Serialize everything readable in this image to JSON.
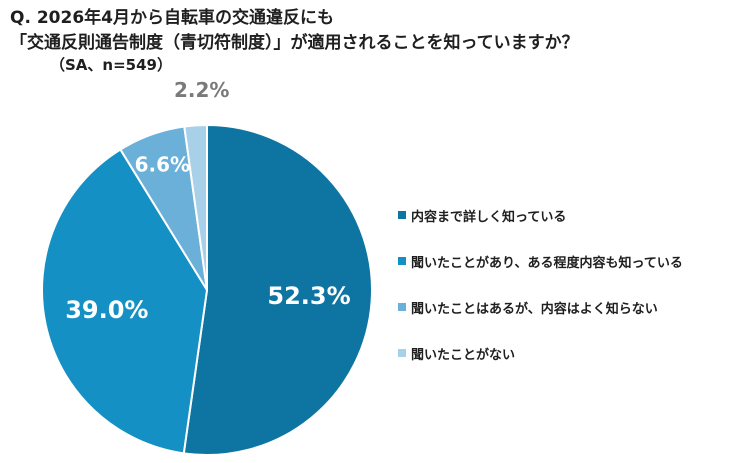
{
  "chart_data": {
    "type": "pie",
    "title_lines": [
      "Q. 2026年4月から自転車の交通違反にも",
      "「交通反則通告制度（青切符制度）」が適用されることを知っていますか？"
    ],
    "subtitle": "（SA、n=549）",
    "categories": [
      "内容まで詳しく知っている",
      "聞いたことがあり、ある程度内容も知っている",
      "聞いたことはあるが、内容はよく知らない",
      "聞いたことがない"
    ],
    "values": [
      52.3,
      39.0,
      6.6,
      2.2
    ],
    "labels": [
      "52.3%",
      "39.0%",
      "6.6%",
      "2.2%"
    ],
    "colors": [
      "#0e75a2",
      "#1490c4",
      "#6ab0d9",
      "#a8d0e8"
    ],
    "label_colors": [
      "#ffffff",
      "#ffffff",
      "#ffffff",
      "#7a7a7a"
    ],
    "legend_position": "right"
  }
}
